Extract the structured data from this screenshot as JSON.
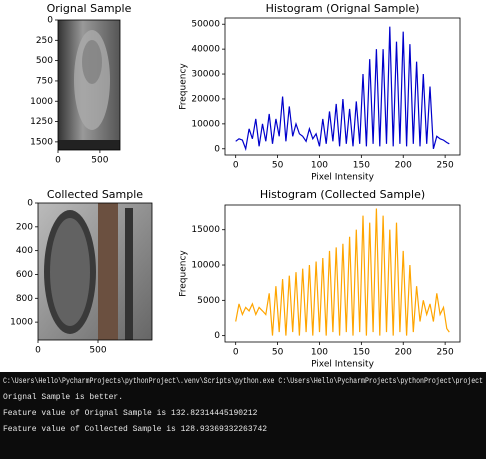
{
  "chart_data": [
    {
      "type": "image",
      "title": "Orignal Sample",
      "xlim": [
        0,
        740
      ],
      "xticks": [
        0,
        500
      ],
      "ylim": [
        1600,
        0
      ],
      "yticks": [
        0,
        250,
        500,
        750,
        1000,
        1250,
        1500
      ]
    },
    {
      "type": "line",
      "title": "Histogram (Orignal Sample)",
      "xlabel": "Pixel Intensity",
      "ylabel": "Frequency",
      "color": "#0000cc",
      "xlim": [
        -12.75,
        267.75
      ],
      "xticks": [
        0,
        50,
        100,
        150,
        200,
        250
      ],
      "ylim": [
        -2500,
        52500
      ],
      "yticks": [
        0,
        10000,
        20000,
        30000,
        40000,
        50000
      ],
      "x": [
        0,
        4,
        8,
        12,
        16,
        20,
        24,
        28,
        32,
        36,
        40,
        44,
        48,
        52,
        56,
        60,
        64,
        68,
        72,
        76,
        80,
        84,
        88,
        92,
        96,
        100,
        104,
        108,
        112,
        116,
        120,
        124,
        128,
        132,
        136,
        140,
        144,
        148,
        152,
        156,
        160,
        164,
        168,
        172,
        176,
        180,
        184,
        188,
        192,
        196,
        200,
        204,
        208,
        212,
        216,
        220,
        224,
        228,
        232,
        236,
        240,
        244,
        248,
        252,
        255
      ],
      "values": [
        3000,
        4000,
        3500,
        0,
        8000,
        4000,
        12000,
        1000,
        10000,
        3000,
        14000,
        2000,
        12000,
        5000,
        21000,
        3000,
        17000,
        5000,
        10000,
        6000,
        5000,
        3000,
        8000,
        4000,
        6000,
        1000,
        12000,
        2000,
        15000,
        3000,
        18000,
        1000,
        20000,
        2000,
        16000,
        1000,
        19000,
        2000,
        30000,
        1000,
        36000,
        2000,
        40000,
        1000,
        40000,
        2000,
        49000,
        1000,
        43000,
        2000,
        47000,
        1000,
        42000,
        2000,
        35000,
        1000,
        30000,
        2000,
        25000,
        0,
        5000,
        4000,
        3500,
        2500,
        2000
      ]
    },
    {
      "type": "image",
      "title": "Collected Sample",
      "xlim": [
        0,
        950
      ],
      "xticks": [
        0,
        500
      ],
      "ylim": [
        1150,
        0
      ],
      "yticks": [
        0,
        200,
        400,
        600,
        800,
        1000
      ]
    },
    {
      "type": "line",
      "title": "Histogram (Collected Sample)",
      "xlabel": "Pixel Intensity",
      "ylabel": "Frequency",
      "color": "#ffa500",
      "xlim": [
        -12.75,
        267.75
      ],
      "xticks": [
        0,
        50,
        100,
        150,
        200,
        250
      ],
      "ylim": [
        -900,
        18500
      ],
      "yticks": [
        0,
        5000,
        10000,
        15000
      ],
      "x": [
        0,
        4,
        8,
        12,
        16,
        20,
        24,
        28,
        32,
        36,
        40,
        44,
        48,
        52,
        56,
        60,
        64,
        68,
        72,
        76,
        80,
        84,
        88,
        92,
        96,
        100,
        104,
        108,
        112,
        116,
        120,
        124,
        128,
        132,
        136,
        140,
        144,
        148,
        152,
        156,
        160,
        164,
        168,
        172,
        176,
        180,
        184,
        188,
        192,
        196,
        200,
        204,
        208,
        212,
        216,
        220,
        224,
        228,
        232,
        236,
        240,
        244,
        248,
        252,
        255
      ],
      "values": [
        2000,
        4500,
        3000,
        4000,
        3500,
        4500,
        3000,
        4000,
        3500,
        3000,
        6000,
        0,
        7000,
        500,
        8000,
        0,
        8500,
        500,
        9000,
        0,
        9500,
        500,
        10000,
        0,
        10500,
        500,
        11000,
        0,
        12000,
        500,
        12500,
        0,
        13000,
        500,
        14000,
        0,
        15000,
        500,
        17000,
        0,
        16000,
        500,
        18000,
        0,
        17000,
        500,
        15000,
        0,
        16000,
        500,
        12000,
        0,
        10000,
        500,
        7000,
        2000,
        5000,
        3000,
        4500,
        2000,
        6000,
        3000,
        4000,
        1000,
        500
      ]
    }
  ],
  "console": {
    "lines": [
      "C:\\Users\\Hello\\PycharmProjects\\pythonProject\\.venv\\Scripts\\python.exe C:\\Users\\Hello\\PycharmProjects\\pythonProject\\project",
      "Orignal Sample is better.",
      "Feature value of Orignal Sample is 132.82314445190212",
      "Feature value of Collected Sample is 128.93369332263742"
    ]
  }
}
